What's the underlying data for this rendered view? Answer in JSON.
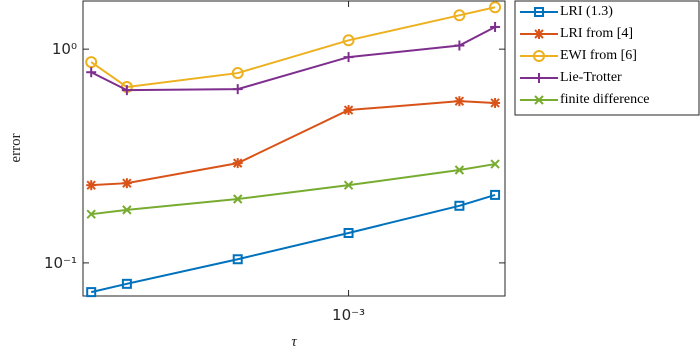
{
  "chart_data": {
    "type": "line",
    "xlabel": "τ",
    "ylabel": "error",
    "x": [
      0.0002,
      0.00025,
      0.0005,
      0.001,
      0.002,
      0.0025
    ],
    "xlog": true,
    "ylog": true,
    "xlim": [
      0.00019,
      0.00266
    ],
    "ylim": [
      0.07,
      1.68
    ],
    "xticks": [
      {
        "value": 0.001,
        "label": "10⁻³"
      }
    ],
    "yticks": [
      {
        "value": 0.1,
        "label": "10⁻¹"
      },
      {
        "value": 1,
        "label": "10⁰"
      }
    ],
    "legend": "outside-upper-right",
    "series": [
      {
        "name": "LRI (1.3)",
        "color": "#0072BD",
        "marker": "square",
        "values": [
          0.073,
          0.0798,
          0.104,
          0.138,
          0.185,
          0.208
        ]
      },
      {
        "name": "LRI from [4]",
        "color": "#D95319",
        "marker": "asterisk",
        "values": [
          0.231,
          0.236,
          0.293,
          0.519,
          0.571,
          0.56
        ]
      },
      {
        "name": "EWI from [6]",
        "color": "#EDB120",
        "marker": "circle",
        "values": [
          0.87,
          0.665,
          0.773,
          1.1,
          1.44,
          1.57
        ]
      },
      {
        "name": "Lie-Trotter",
        "color": "#7E2F8E",
        "marker": "plus",
        "values": [
          0.78,
          0.643,
          0.65,
          0.918,
          1.04,
          1.27
        ]
      },
      {
        "name": "finite difference",
        "color": "#77AC30",
        "marker": "x",
        "values": [
          0.169,
          0.177,
          0.199,
          0.231,
          0.272,
          0.29
        ]
      }
    ]
  }
}
